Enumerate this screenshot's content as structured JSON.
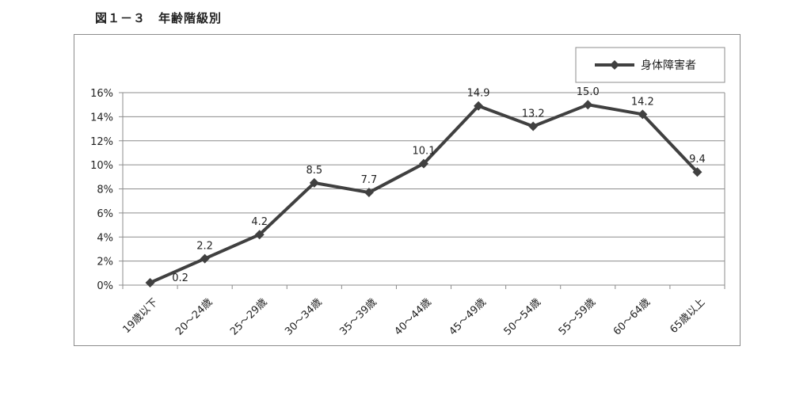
{
  "figure": {
    "title": "図１－３　年齢階級別"
  },
  "chart_data": {
    "type": "line",
    "title": "図１－３　年齢階級別",
    "xlabel": "",
    "ylabel": "",
    "categories": [
      "19歳以下",
      "20～24歳",
      "25～29歳",
      "30～34歳",
      "35～39歳",
      "40～44歳",
      "45～49歳",
      "50～54歳",
      "55～59歳",
      "60～64歳",
      "65歳以上"
    ],
    "series": [
      {
        "name": "身体障害者",
        "values": [
          0.2,
          2.2,
          4.2,
          8.5,
          7.7,
          10.1,
          14.9,
          13.2,
          15.0,
          14.2,
          9.4
        ],
        "labels": [
          "0.2",
          "2.2",
          "4.2",
          "8.5",
          "7.7",
          "10.1",
          "14.9",
          "13.2",
          "15.0",
          "14.2",
          "9.4"
        ]
      }
    ],
    "ylim": [
      0,
      16
    ],
    "yticks": [
      "0%",
      "2%",
      "4%",
      "6%",
      "8%",
      "10%",
      "12%",
      "14%",
      "16%"
    ],
    "grid": true,
    "legend_position": "top-right",
    "colors": {
      "line": "#404040",
      "grid": "#8c8c8c",
      "axis": "#8c8c8c"
    }
  }
}
